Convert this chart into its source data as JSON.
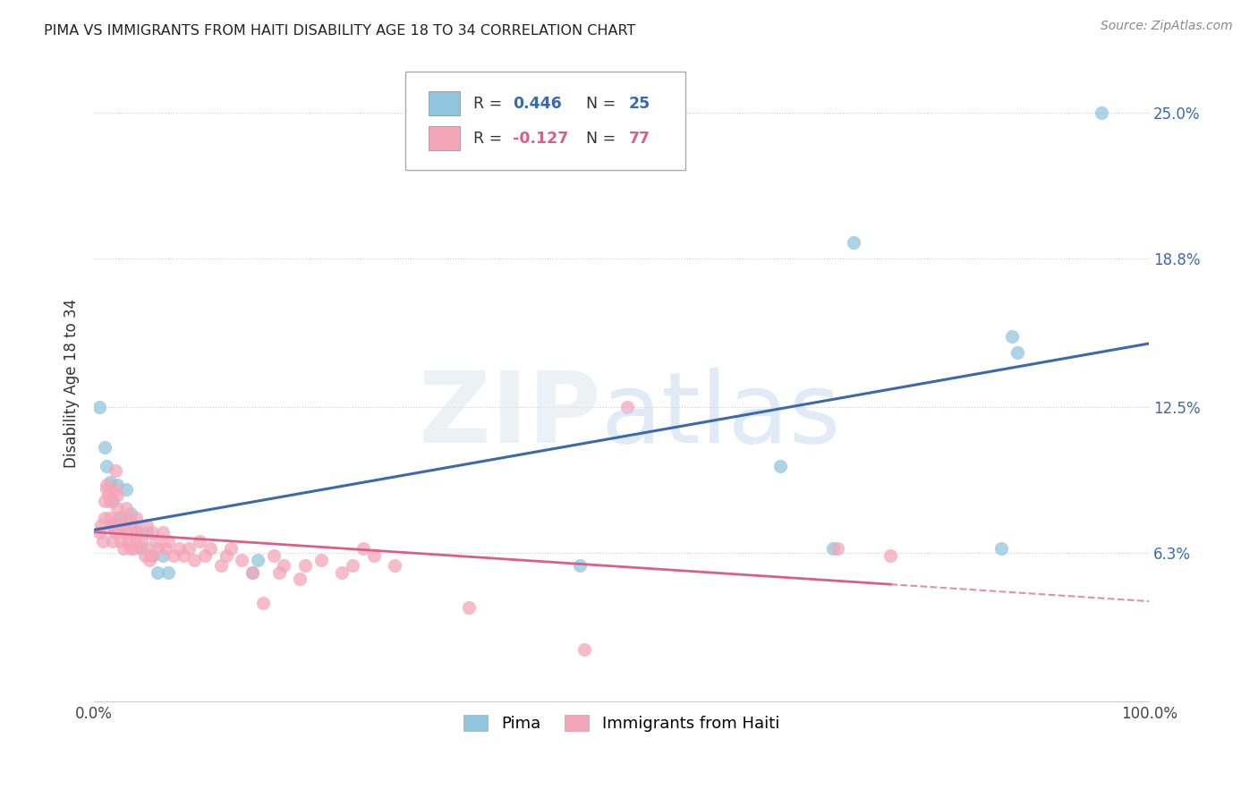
{
  "title": "PIMA VS IMMIGRANTS FROM HAITI DISABILITY AGE 18 TO 34 CORRELATION CHART",
  "source": "Source: ZipAtlas.com",
  "ylabel": "Disability Age 18 to 34",
  "xlim": [
    0.0,
    1.0
  ],
  "ylim": [
    0.0,
    0.27
  ],
  "x_tick_labels": [
    "0.0%",
    "100.0%"
  ],
  "y_tick_labels": [
    "6.3%",
    "12.5%",
    "18.8%",
    "25.0%"
  ],
  "y_tick_values": [
    0.063,
    0.125,
    0.188,
    0.25
  ],
  "blue_color": "#92c5de",
  "pink_color": "#f4a6b8",
  "blue_line_color": "#3a6aad",
  "pink_line_color": "#d95f8a",
  "blue_scatter": [
    [
      0.005,
      0.125
    ],
    [
      0.01,
      0.108
    ],
    [
      0.012,
      0.1
    ],
    [
      0.015,
      0.093
    ],
    [
      0.018,
      0.085
    ],
    [
      0.022,
      0.092
    ],
    [
      0.025,
      0.078
    ],
    [
      0.03,
      0.09
    ],
    [
      0.035,
      0.08
    ],
    [
      0.04,
      0.072
    ],
    [
      0.045,
      0.065
    ],
    [
      0.05,
      0.072
    ],
    [
      0.055,
      0.062
    ],
    [
      0.06,
      0.055
    ],
    [
      0.065,
      0.062
    ],
    [
      0.07,
      0.055
    ],
    [
      0.15,
      0.055
    ],
    [
      0.155,
      0.06
    ],
    [
      0.46,
      0.058
    ],
    [
      0.65,
      0.1
    ],
    [
      0.7,
      0.065
    ],
    [
      0.72,
      0.195
    ],
    [
      0.86,
      0.065
    ],
    [
      0.87,
      0.155
    ],
    [
      0.875,
      0.148
    ],
    [
      0.955,
      0.25
    ]
  ],
  "pink_scatter": [
    [
      0.005,
      0.072
    ],
    [
      0.007,
      0.075
    ],
    [
      0.008,
      0.068
    ],
    [
      0.01,
      0.085
    ],
    [
      0.01,
      0.078
    ],
    [
      0.012,
      0.092
    ],
    [
      0.012,
      0.09
    ],
    [
      0.013,
      0.088
    ],
    [
      0.015,
      0.085
    ],
    [
      0.015,
      0.078
    ],
    [
      0.016,
      0.075
    ],
    [
      0.018,
      0.075
    ],
    [
      0.018,
      0.068
    ],
    [
      0.02,
      0.098
    ],
    [
      0.02,
      0.09
    ],
    [
      0.02,
      0.072
    ],
    [
      0.022,
      0.088
    ],
    [
      0.022,
      0.082
    ],
    [
      0.023,
      0.078
    ],
    [
      0.025,
      0.075
    ],
    [
      0.025,
      0.068
    ],
    [
      0.028,
      0.075
    ],
    [
      0.028,
      0.065
    ],
    [
      0.03,
      0.082
    ],
    [
      0.03,
      0.072
    ],
    [
      0.032,
      0.078
    ],
    [
      0.032,
      0.068
    ],
    [
      0.035,
      0.075
    ],
    [
      0.035,
      0.065
    ],
    [
      0.038,
      0.075
    ],
    [
      0.038,
      0.065
    ],
    [
      0.04,
      0.078
    ],
    [
      0.04,
      0.068
    ],
    [
      0.042,
      0.072
    ],
    [
      0.045,
      0.068
    ],
    [
      0.048,
      0.062
    ],
    [
      0.05,
      0.075
    ],
    [
      0.05,
      0.065
    ],
    [
      0.052,
      0.06
    ],
    [
      0.055,
      0.072
    ],
    [
      0.055,
      0.062
    ],
    [
      0.058,
      0.068
    ],
    [
      0.06,
      0.065
    ],
    [
      0.065,
      0.072
    ],
    [
      0.068,
      0.065
    ],
    [
      0.07,
      0.068
    ],
    [
      0.075,
      0.062
    ],
    [
      0.08,
      0.065
    ],
    [
      0.085,
      0.062
    ],
    [
      0.09,
      0.065
    ],
    [
      0.095,
      0.06
    ],
    [
      0.1,
      0.068
    ],
    [
      0.105,
      0.062
    ],
    [
      0.11,
      0.065
    ],
    [
      0.12,
      0.058
    ],
    [
      0.125,
      0.062
    ],
    [
      0.13,
      0.065
    ],
    [
      0.14,
      0.06
    ],
    [
      0.15,
      0.055
    ],
    [
      0.16,
      0.042
    ],
    [
      0.17,
      0.062
    ],
    [
      0.175,
      0.055
    ],
    [
      0.18,
      0.058
    ],
    [
      0.195,
      0.052
    ],
    [
      0.2,
      0.058
    ],
    [
      0.215,
      0.06
    ],
    [
      0.235,
      0.055
    ],
    [
      0.245,
      0.058
    ],
    [
      0.255,
      0.065
    ],
    [
      0.265,
      0.062
    ],
    [
      0.285,
      0.058
    ],
    [
      0.355,
      0.04
    ],
    [
      0.465,
      0.022
    ],
    [
      0.505,
      0.125
    ],
    [
      0.705,
      0.065
    ],
    [
      0.755,
      0.062
    ]
  ],
  "background_color": "#ffffff",
  "grid_color": "#cccccc"
}
